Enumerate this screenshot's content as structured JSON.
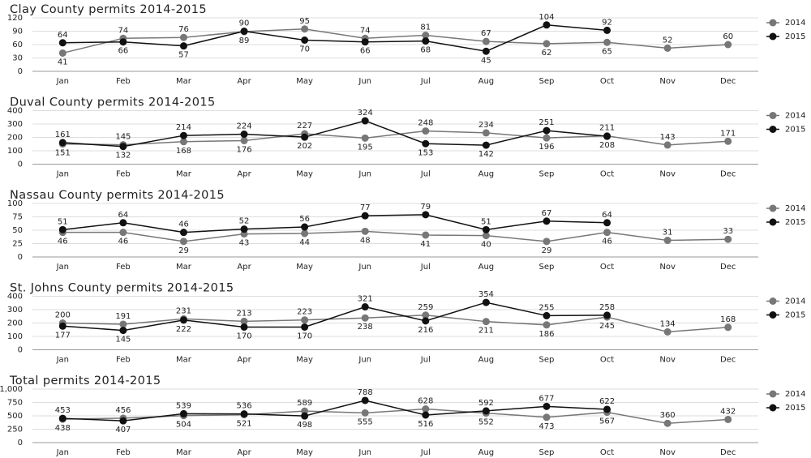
{
  "chart_data": [
    {
      "type": "line",
      "title": "Clay County permits 2014-2015",
      "categories": [
        "Jan",
        "Feb",
        "Mar",
        "Apr",
        "May",
        "Jun",
        "Jul",
        "Aug",
        "Sep",
        "Oct",
        "Nov",
        "Dec"
      ],
      "series": [
        {
          "name": "2014",
          "color": "#777777",
          "values": [
            41,
            74,
            76,
            89,
            95,
            74,
            81,
            67,
            62,
            65,
            52,
            60
          ]
        },
        {
          "name": "2015",
          "color": "#111111",
          "values": [
            64,
            66,
            57,
            90,
            70,
            66,
            68,
            45,
            104,
            92,
            null,
            null
          ]
        }
      ],
      "ylim": [
        0,
        120
      ],
      "yticks": [
        0,
        30,
        60,
        90,
        120
      ],
      "grid": true,
      "legend": "right"
    },
    {
      "type": "line",
      "title": "Duval County permits 2014-2015",
      "categories": [
        "Jan",
        "Feb",
        "Mar",
        "Apr",
        "May",
        "Jun",
        "Jul",
        "Aug",
        "Sep",
        "Oct",
        "Nov",
        "Dec"
      ],
      "series": [
        {
          "name": "2014",
          "color": "#777777",
          "values": [
            151,
            145,
            168,
            176,
            227,
            195,
            248,
            234,
            196,
            211,
            143,
            171
          ]
        },
        {
          "name": "2015",
          "color": "#111111",
          "values": [
            161,
            132,
            214,
            224,
            202,
            324,
            153,
            142,
            251,
            208,
            null,
            null
          ]
        }
      ],
      "ylim": [
        0,
        400
      ],
      "yticks": [
        0,
        100,
        200,
        300,
        400
      ],
      "grid": true,
      "legend": "right"
    },
    {
      "type": "line",
      "title": "Nassau County permits 2014-2015",
      "categories": [
        "Jan",
        "Feb",
        "Mar",
        "Apr",
        "May",
        "Jun",
        "Jul",
        "Aug",
        "Sep",
        "Oct",
        "Nov",
        "Dec"
      ],
      "series": [
        {
          "name": "2014",
          "color": "#777777",
          "values": [
            46,
            46,
            29,
            43,
            44,
            48,
            41,
            40,
            29,
            46,
            31,
            33
          ]
        },
        {
          "name": "2015",
          "color": "#111111",
          "values": [
            51,
            64,
            46,
            52,
            56,
            77,
            79,
            51,
            67,
            64,
            null,
            null
          ]
        }
      ],
      "ylim": [
        0,
        100
      ],
      "yticks": [
        0,
        25,
        50,
        75,
        100
      ],
      "grid": true,
      "legend": "right"
    },
    {
      "type": "line",
      "title": "St. Johns County permits 2014-2015",
      "categories": [
        "Jan",
        "Feb",
        "Mar",
        "Apr",
        "May",
        "Jun",
        "Jul",
        "Aug",
        "Sep",
        "Oct",
        "Nov",
        "Dec"
      ],
      "series": [
        {
          "name": "2014",
          "color": "#777777",
          "values": [
            200,
            191,
            231,
            213,
            223,
            238,
            259,
            211,
            186,
            245,
            134,
            168
          ]
        },
        {
          "name": "2015",
          "color": "#111111",
          "values": [
            177,
            145,
            222,
            170,
            170,
            321,
            216,
            354,
            255,
            258,
            null,
            null
          ]
        }
      ],
      "ylim": [
        0,
        400
      ],
      "yticks": [
        0,
        100,
        200,
        300,
        400
      ],
      "grid": true,
      "legend": "right"
    },
    {
      "type": "line",
      "title": "Total permits 2014-2015",
      "categories": [
        "Jan",
        "Feb",
        "Mar",
        "Apr",
        "May",
        "Jun",
        "Jul",
        "Aug",
        "Sep",
        "Oct",
        "Nov",
        "Dec"
      ],
      "series": [
        {
          "name": "2014",
          "color": "#777777",
          "values": [
            438,
            456,
            504,
            521,
            589,
            555,
            628,
            552,
            473,
            567,
            360,
            432
          ]
        },
        {
          "name": "2015",
          "color": "#111111",
          "values": [
            453,
            407,
            539,
            536,
            498,
            788,
            516,
            592,
            677,
            622,
            null,
            null
          ]
        }
      ],
      "ylim": [
        0,
        1000
      ],
      "yticks": [
        0,
        250,
        500,
        750,
        {
          "value": 1000,
          "label": "1,000"
        }
      ],
      "grid": true,
      "legend": "right"
    }
  ]
}
